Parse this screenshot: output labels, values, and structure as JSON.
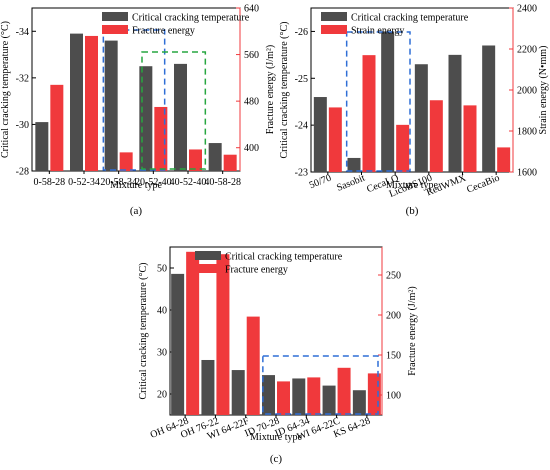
{
  "colors": {
    "temperature": "#4d4d4d",
    "energy": "#f0393c",
    "blue_box": "#2f6fd6",
    "green_box": "#27a640",
    "axis": "#000000"
  },
  "chart_data": [
    {
      "panel": "(a)",
      "type": "bar",
      "xlabel": "Mixture type",
      "categories": [
        "0-58-28",
        "0-52-34",
        "20-58-34",
        "20-52-40",
        "40-52-40",
        "40-58-28"
      ],
      "y_left": {
        "label": "Critical cracking temperature (°C)",
        "lim": [
          -28,
          -35
        ],
        "ticks": [
          -28,
          -30,
          -32,
          -34
        ]
      },
      "y_right": {
        "label": "Fracture energy (J/m²)",
        "lim": [
          360,
          640
        ],
        "ticks": [
          400,
          480,
          560,
          640
        ]
      },
      "series": [
        {
          "name": "Critical cracking temperature",
          "axis": "left",
          "values": [
            -30.1,
            -33.9,
            -33.6,
            -32.5,
            -32.6,
            -29.2
          ]
        },
        {
          "name": "Fracture energy",
          "axis": "right",
          "values": [
            508,
            592,
            392,
            470,
            397,
            388
          ]
        }
      ],
      "highlights": [
        {
          "color": "blue",
          "from": "20-58-34",
          "to": "20-52-40"
        },
        {
          "color": "green",
          "from": "20-52-40",
          "to": "40-52-40"
        }
      ],
      "legend": "top"
    },
    {
      "panel": "(b)",
      "type": "bar",
      "xlabel": "Mixture type",
      "categories": [
        "50/70",
        "Sasobit",
        "CecaLQ",
        "LicoBS100",
        "RedWMX",
        "CecaBio"
      ],
      "y_left": {
        "label": "Critical cracking temperature (°C)",
        "lim": [
          -23,
          -26.5
        ],
        "ticks": [
          -23,
          -24,
          -25,
          -26
        ]
      },
      "y_right": {
        "label": "Strain energy (N•mm)",
        "lim": [
          1600,
          2400
        ],
        "ticks": [
          1600,
          1800,
          2000,
          2200,
          2400
        ]
      },
      "series": [
        {
          "name": "Critical cracking temperature",
          "axis": "left",
          "values": [
            -24.6,
            -23.3,
            -26.0,
            -25.3,
            -25.5,
            -25.7
          ]
        },
        {
          "name": "Strain energy",
          "axis": "right",
          "values": [
            1915,
            2170,
            1830,
            1950,
            1925,
            1720
          ]
        }
      ],
      "highlights": [
        {
          "color": "blue",
          "from": "Sasobit",
          "to": "CecaLQ"
        }
      ],
      "legend": "top"
    },
    {
      "panel": "(c)",
      "type": "bar",
      "xlabel": "Mixture type",
      "categories": [
        "OH 64-28",
        "OH 76-22",
        "WI 64-22F",
        "ID 70-28",
        "ID 64-34",
        "WI 64-22C",
        "KS 64-28"
      ],
      "y_left": {
        "label": "Critical cracking temperature (°C)",
        "lim": [
          15,
          55
        ],
        "ticks": [
          20,
          30,
          40,
          50
        ]
      },
      "y_right": {
        "label": "Fracture energy (J/m²)",
        "lim": [
          75,
          285
        ],
        "ticks": [
          100,
          150,
          200,
          250
        ]
      },
      "series": [
        {
          "name": "Critical cracking temperature",
          "axis": "left",
          "values": [
            48.6,
            28.1,
            25.7,
            24.5,
            23.7,
            22.0,
            20.9
          ]
        },
        {
          "name": "Fracture energy",
          "axis": "right",
          "values": [
            279,
            276,
            198,
            117,
            122,
            134,
            127
          ]
        }
      ],
      "highlights": [
        {
          "color": "blue",
          "from": "ID 70-28",
          "to": "KS 64-28"
        }
      ],
      "legend": "top"
    }
  ]
}
